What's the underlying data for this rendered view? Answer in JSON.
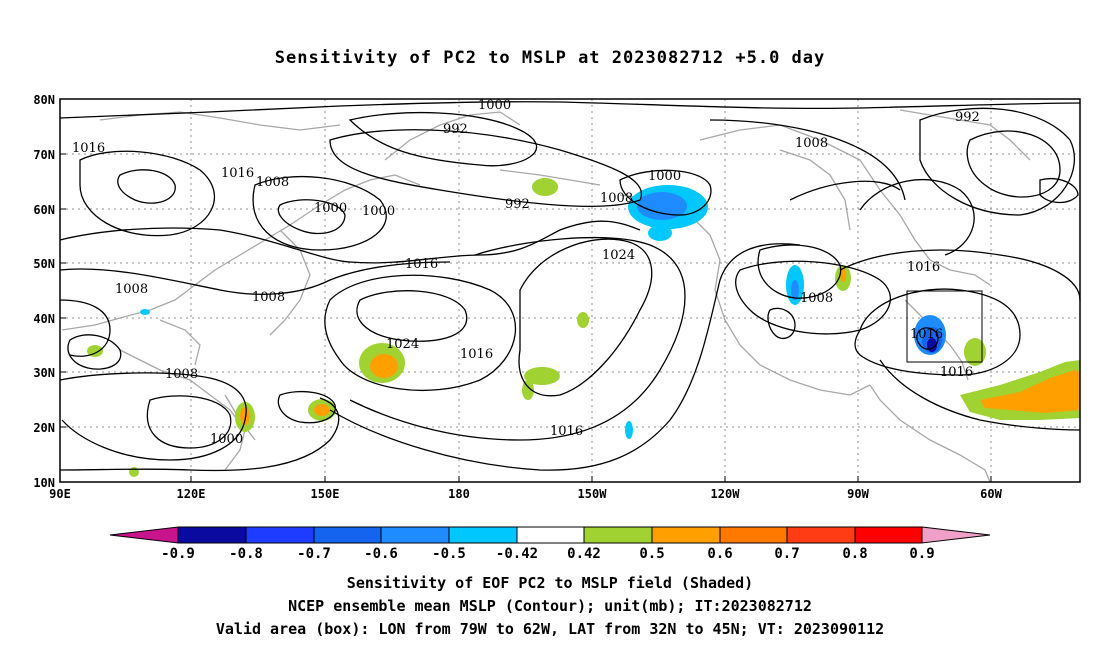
{
  "title": "Sensitivity of PC2 to MSLP at 2023082712 +5.0 day",
  "map": {
    "lat_labels": [
      "80N",
      "70N",
      "60N",
      "50N",
      "40N",
      "30N",
      "20N",
      "10N"
    ],
    "lon_labels": [
      "90E",
      "120E",
      "150E",
      "180",
      "150W",
      "120W",
      "90W",
      "60W"
    ],
    "contour_labels": [
      {
        "text": "1000"
      },
      {
        "text": "992"
      },
      {
        "text": "992"
      },
      {
        "text": "1008"
      },
      {
        "text": "1016"
      },
      {
        "text": "1016"
      },
      {
        "text": "1008"
      },
      {
        "text": "1000"
      },
      {
        "text": "1000"
      },
      {
        "text": "992"
      },
      {
        "text": "1008"
      },
      {
        "text": "1000"
      },
      {
        "text": "1024"
      },
      {
        "text": "1016"
      },
      {
        "text": "1016"
      },
      {
        "text": "1008"
      },
      {
        "text": "1008"
      },
      {
        "text": "1008"
      },
      {
        "text": "1024"
      },
      {
        "text": "1016"
      },
      {
        "text": "1016"
      },
      {
        "text": "1000"
      },
      {
        "text": "1008"
      },
      {
        "text": "1016"
      },
      {
        "text": "1016"
      }
    ],
    "valid_box": {
      "lon_range": "79W to 62W",
      "lat_range": "32N to 45N"
    }
  },
  "colorbar": {
    "labels": [
      "-0.9",
      "-0.8",
      "-0.7",
      "-0.6",
      "-0.5",
      "-0.42",
      "0.42",
      "0.5",
      "0.6",
      "0.7",
      "0.8",
      "0.9"
    ],
    "colors": {
      "low_arrow": "#c8148c",
      "b1": "#0a0aa0",
      "b2": "#1e3cff",
      "b3": "#1464f0",
      "b4": "#1e8cff",
      "b5": "#00c8ff",
      "b6": "#ffffff",
      "b7": "#a0d232",
      "b8": "#ffa000",
      "b9": "#ff7800",
      "b10": "#ff3c14",
      "b11": "#ff0000",
      "high_arrow": "#f0a0c8"
    }
  },
  "captions": {
    "line1": "Sensitivity of EOF PC2 to MSLP field (Shaded)",
    "line2": "NCEP ensemble mean MSLP (Contour); unit(mb); IT:2023082712",
    "line3": "Valid area (box): LON from 79W to 62W, LAT from 32N to 45N; VT: 2023090112"
  }
}
